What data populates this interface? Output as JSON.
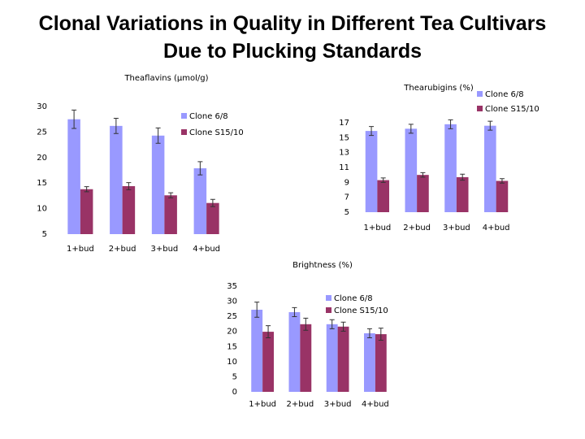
{
  "title": "Clonal Variations in Quality in Different Tea Cultivars Due to Plucking Standards",
  "chart_data": [
    {
      "type": "bar",
      "title": "Theaflavins (µmol/g)",
      "categories": [
        "1+bud",
        "2+bud",
        "3+bud",
        "4+bud"
      ],
      "series": [
        {
          "name": "Clone 6/8",
          "color": "#9999ff",
          "values": [
            27.5,
            26.2,
            24.3,
            17.9
          ],
          "errors": [
            1.8,
            1.5,
            1.5,
            1.3
          ]
        },
        {
          "name": "Clone S15/10",
          "color": "#993366",
          "values": [
            13.8,
            14.4,
            12.6,
            11.1
          ],
          "errors": [
            0.5,
            0.7,
            0.5,
            0.7
          ]
        }
      ],
      "ylim": [
        5,
        30
      ],
      "yticks": [
        5,
        10,
        15,
        20,
        25,
        30
      ]
    },
    {
      "type": "bar",
      "title": "Thearubigins (%)",
      "categories": [
        "1+bud",
        "2+bud",
        "3+bud",
        "4+bud"
      ],
      "series": [
        {
          "name": "Clone 6/8",
          "color": "#9999ff",
          "values": [
            15.9,
            16.2,
            16.8,
            16.6
          ],
          "errors": [
            0.6,
            0.6,
            0.6,
            0.6
          ]
        },
        {
          "name": "Clone S15/10",
          "color": "#993366",
          "values": [
            9.3,
            10.0,
            9.7,
            9.2
          ],
          "errors": [
            0.3,
            0.3,
            0.4,
            0.3
          ]
        }
      ],
      "ylim": [
        5,
        17
      ],
      "yticks": [
        5,
        7,
        9,
        11,
        13,
        15,
        17
      ]
    },
    {
      "type": "bar",
      "title": "Brightness (%)",
      "categories": [
        "1+bud",
        "2+bud",
        "3+bud",
        "4+bud"
      ],
      "series": [
        {
          "name": "Clone 6/8",
          "color": "#9999ff",
          "values": [
            27.2,
            26.4,
            22.4,
            19.4
          ],
          "errors": [
            2.5,
            1.5,
            1.5,
            1.5
          ]
        },
        {
          "name": "Clone S15/10",
          "color": "#993366",
          "values": [
            19.9,
            22.4,
            21.6,
            19.1
          ],
          "errors": [
            2.0,
            2.0,
            1.5,
            2.0
          ]
        }
      ],
      "ylim": [
        0,
        35
      ],
      "yticks": [
        0,
        5,
        10,
        15,
        20,
        25,
        30,
        35
      ]
    }
  ]
}
